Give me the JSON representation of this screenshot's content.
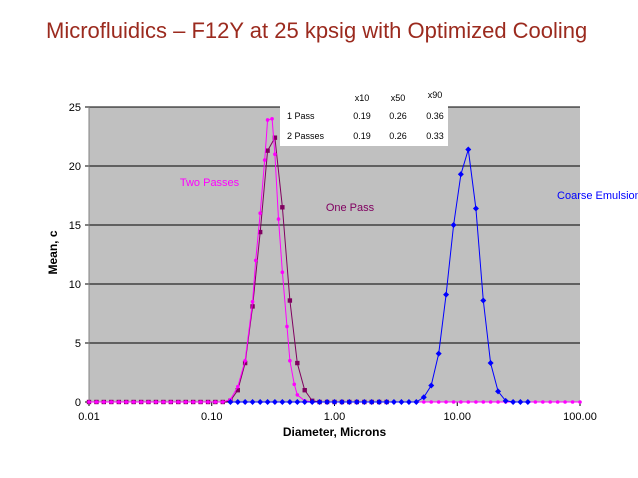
{
  "slide": {
    "title": "Microfluidics – F12Y at 25 kpsig with Optimized Cooling"
  },
  "chart_data": {
    "type": "line",
    "x_scale": "log",
    "xlabel": "Diameter, Microns",
    "ylabel": "Mean, c",
    "xlim": [
      0.01,
      100
    ],
    "ylim": [
      0,
      25
    ],
    "x_ticks": [
      0.01,
      0.1,
      1,
      10,
      100
    ],
    "x_tick_labels": [
      "0.01",
      "0.10",
      "1.00",
      "10.00",
      "100.00"
    ],
    "y_ticks": [
      0,
      5,
      10,
      15,
      20,
      25
    ],
    "y_tick_labels": [
      "0",
      "5",
      "10",
      "15",
      "20",
      "25"
    ],
    "grid": true,
    "plot_background": "#c0c0c0",
    "series": [
      {
        "name": "One Pass",
        "color": "#800060",
        "marker": "square",
        "points": [
          [
            0.01,
            0
          ],
          [
            0.0115,
            0
          ],
          [
            0.0132,
            0
          ],
          [
            0.0152,
            0
          ],
          [
            0.0175,
            0
          ],
          [
            0.0201,
            0
          ],
          [
            0.0231,
            0
          ],
          [
            0.0266,
            0
          ],
          [
            0.0305,
            0
          ],
          [
            0.0351,
            0
          ],
          [
            0.0404,
            0
          ],
          [
            0.0464,
            0
          ],
          [
            0.0534,
            0
          ],
          [
            0.0614,
            0
          ],
          [
            0.0706,
            0
          ],
          [
            0.0811,
            0
          ],
          [
            0.0933,
            0
          ],
          [
            0.107,
            0
          ],
          [
            0.123,
            0
          ],
          [
            0.142,
            0.1
          ],
          [
            0.163,
            1.0
          ],
          [
            0.187,
            3.3
          ],
          [
            0.215,
            8.1
          ],
          [
            0.248,
            14.4
          ],
          [
            0.285,
            21.3
          ],
          [
            0.327,
            22.4
          ],
          [
            0.376,
            16.5
          ],
          [
            0.433,
            8.6
          ],
          [
            0.498,
            3.3
          ],
          [
            0.572,
            1.0
          ],
          [
            0.658,
            0.1
          ],
          [
            0.756,
            0
          ],
          [
            0.87,
            0
          ],
          [
            1.0,
            0
          ],
          [
            1.15,
            0
          ],
          [
            1.32,
            0
          ],
          [
            1.52,
            0
          ],
          [
            1.75,
            0
          ],
          [
            2.01,
            0
          ],
          [
            2.31,
            0
          ],
          [
            2.66,
            0
          ]
        ]
      },
      {
        "name": "Two Passes",
        "color": "#ff00ff",
        "marker": "circle",
        "points": [
          [
            0.01,
            0
          ],
          [
            0.0115,
            0
          ],
          [
            0.0132,
            0
          ],
          [
            0.0152,
            0
          ],
          [
            0.0175,
            0
          ],
          [
            0.0201,
            0
          ],
          [
            0.0231,
            0
          ],
          [
            0.0266,
            0
          ],
          [
            0.0305,
            0
          ],
          [
            0.0351,
            0
          ],
          [
            0.0404,
            0
          ],
          [
            0.0464,
            0
          ],
          [
            0.0534,
            0
          ],
          [
            0.0614,
            0
          ],
          [
            0.0706,
            0
          ],
          [
            0.0811,
            0
          ],
          [
            0.0933,
            0
          ],
          [
            0.107,
            0
          ],
          [
            0.123,
            0
          ],
          [
            0.142,
            0.2
          ],
          [
            0.163,
            1.3
          ],
          [
            0.187,
            3.5
          ],
          [
            0.215,
            8.5
          ],
          [
            0.228,
            12.0
          ],
          [
            0.248,
            16.0
          ],
          [
            0.27,
            20.5
          ],
          [
            0.285,
            23.9
          ],
          [
            0.31,
            24.0
          ],
          [
            0.327,
            21.0
          ],
          [
            0.35,
            15.5
          ],
          [
            0.376,
            11.0
          ],
          [
            0.41,
            6.4
          ],
          [
            0.433,
            3.5
          ],
          [
            0.47,
            1.5
          ],
          [
            0.498,
            0.6
          ],
          [
            0.572,
            0.1
          ],
          [
            0.658,
            0
          ],
          [
            0.756,
            0
          ],
          [
            0.87,
            0
          ],
          [
            1.0,
            0
          ],
          [
            1.15,
            0
          ],
          [
            1.32,
            0
          ],
          [
            1.52,
            0
          ],
          [
            1.75,
            0
          ],
          [
            2.01,
            0
          ],
          [
            2.31,
            0
          ],
          [
            2.66,
            0
          ],
          [
            3.05,
            0
          ],
          [
            3.51,
            0
          ],
          [
            4.04,
            0
          ],
          [
            4.64,
            0
          ],
          [
            5.34,
            0
          ],
          [
            6.14,
            0
          ],
          [
            7.06,
            0
          ],
          [
            8.11,
            0
          ],
          [
            9.33,
            0
          ],
          [
            10.7,
            0
          ],
          [
            12.3,
            0
          ],
          [
            14.2,
            0
          ],
          [
            16.3,
            0
          ],
          [
            18.7,
            0
          ],
          [
            21.5,
            0
          ],
          [
            24.8,
            0
          ],
          [
            28.5,
            0
          ],
          [
            32.7,
            0
          ],
          [
            37.6,
            0
          ],
          [
            43.3,
            0
          ],
          [
            49.8,
            0
          ],
          [
            57.2,
            0
          ],
          [
            65.8,
            0
          ],
          [
            75.6,
            0
          ],
          [
            87.0,
            0
          ],
          [
            100,
            0
          ]
        ]
      },
      {
        "name": "Coarse Emulsion",
        "color": "#0000ff",
        "marker": "diamond",
        "points": [
          [
            0.142,
            0
          ],
          [
            0.163,
            0
          ],
          [
            0.187,
            0
          ],
          [
            0.215,
            0
          ],
          [
            0.248,
            0
          ],
          [
            0.285,
            0
          ],
          [
            0.327,
            0
          ],
          [
            0.376,
            0
          ],
          [
            0.433,
            0
          ],
          [
            0.498,
            0
          ],
          [
            0.572,
            0
          ],
          [
            0.658,
            0
          ],
          [
            0.756,
            0
          ],
          [
            0.87,
            0
          ],
          [
            1.0,
            0
          ],
          [
            1.15,
            0
          ],
          [
            1.32,
            0
          ],
          [
            1.52,
            0
          ],
          [
            1.75,
            0
          ],
          [
            2.01,
            0
          ],
          [
            2.31,
            0
          ],
          [
            2.66,
            0
          ],
          [
            3.05,
            0
          ],
          [
            3.51,
            0
          ],
          [
            4.04,
            0
          ],
          [
            4.64,
            0
          ],
          [
            5.34,
            0.4
          ],
          [
            6.14,
            1.4
          ],
          [
            7.06,
            4.1
          ],
          [
            8.11,
            9.1
          ],
          [
            9.33,
            15.0
          ],
          [
            10.7,
            19.3
          ],
          [
            12.3,
            21.4
          ],
          [
            14.2,
            16.4
          ],
          [
            16.3,
            8.6
          ],
          [
            18.7,
            3.3
          ],
          [
            21.5,
            0.9
          ],
          [
            24.8,
            0.1
          ],
          [
            28.5,
            0
          ],
          [
            32.7,
            0
          ],
          [
            37.6,
            0
          ]
        ]
      }
    ],
    "annotations": [
      {
        "text": "Two Passes",
        "color": "#ff00ff",
        "x": 0.055,
        "y": 18.3
      },
      {
        "text": "One Pass",
        "color": "#800060",
        "x": 0.85,
        "y": 16.2
      },
      {
        "text": "Coarse Emulsion",
        "color": "#0000ff",
        "x": 65,
        "y": 17.2
      }
    ],
    "stats_table": {
      "columns": [
        "",
        "x10",
        "x50",
        "x90"
      ],
      "rows": [
        [
          "1 Pass",
          "0.19",
          "0.26",
          "0.36"
        ],
        [
          "2 Passes",
          "0.19",
          "0.26",
          "0.33"
        ]
      ]
    }
  }
}
